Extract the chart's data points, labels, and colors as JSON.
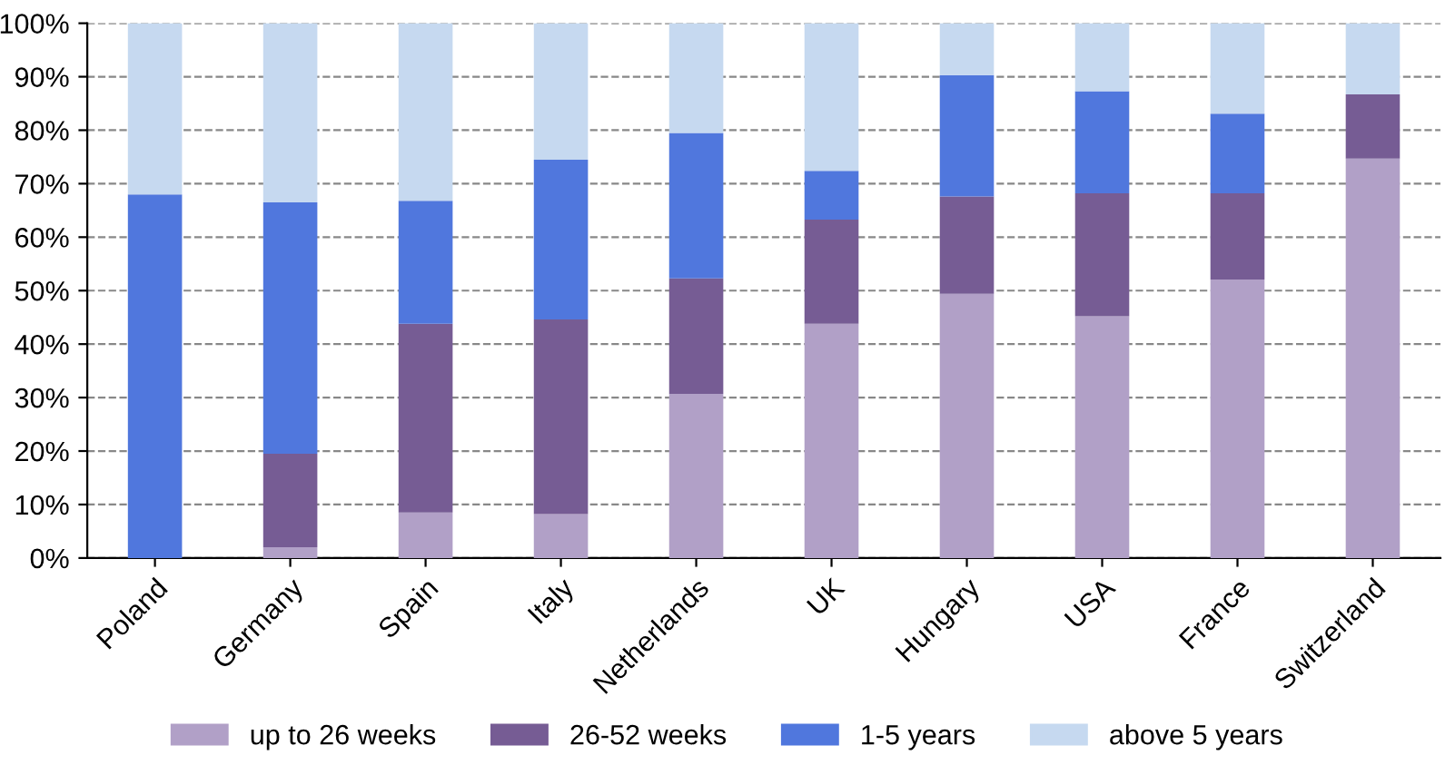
{
  "chart_data": {
    "type": "bar",
    "stacked": true,
    "categories": [
      "Poland",
      "Germany",
      "Spain",
      "Italy",
      "Netherlands",
      "UK",
      "Hungary",
      "USA",
      "France",
      "Switzerland"
    ],
    "series": [
      {
        "name": "up to 26 weeks",
        "color": "#b1a0c7",
        "values": [
          0,
          2,
          8.5,
          8.2,
          30.7,
          43.8,
          49.4,
          45.2,
          52.1,
          74.7
        ]
      },
      {
        "name": "26-52 weeks",
        "color": "#765c94",
        "values": [
          0,
          17.5,
          35.3,
          36.4,
          21.6,
          19.5,
          18.2,
          23,
          16.1,
          12
        ]
      },
      {
        "name": "1-5 years",
        "color": "#5077dd",
        "values": [
          68,
          47,
          23,
          29.9,
          27.2,
          9.1,
          22.7,
          19.1,
          14.9,
          0
        ]
      },
      {
        "name": "above 5 years",
        "color": "#c6d9f0",
        "values": [
          32,
          33.5,
          33.2,
          25.5,
          20.5,
          27.6,
          9.7,
          12.7,
          16.9,
          13.3
        ]
      }
    ],
    "ylim": [
      0,
      100
    ],
    "yticks": [
      {
        "value": 0,
        "label": "0%"
      },
      {
        "value": 10,
        "label": "10%"
      },
      {
        "value": 20,
        "label": "20%"
      },
      {
        "value": 30,
        "label": "30%"
      },
      {
        "value": 40,
        "label": "40%"
      },
      {
        "value": 50,
        "label": "50%"
      },
      {
        "value": 60,
        "label": "60%"
      },
      {
        "value": 70,
        "label": "70%"
      },
      {
        "value": 80,
        "label": "80%"
      },
      {
        "value": 90,
        "label": "90%"
      },
      {
        "value": 100,
        "label": "100%"
      }
    ],
    "grid": "y",
    "legend": "bottom"
  }
}
